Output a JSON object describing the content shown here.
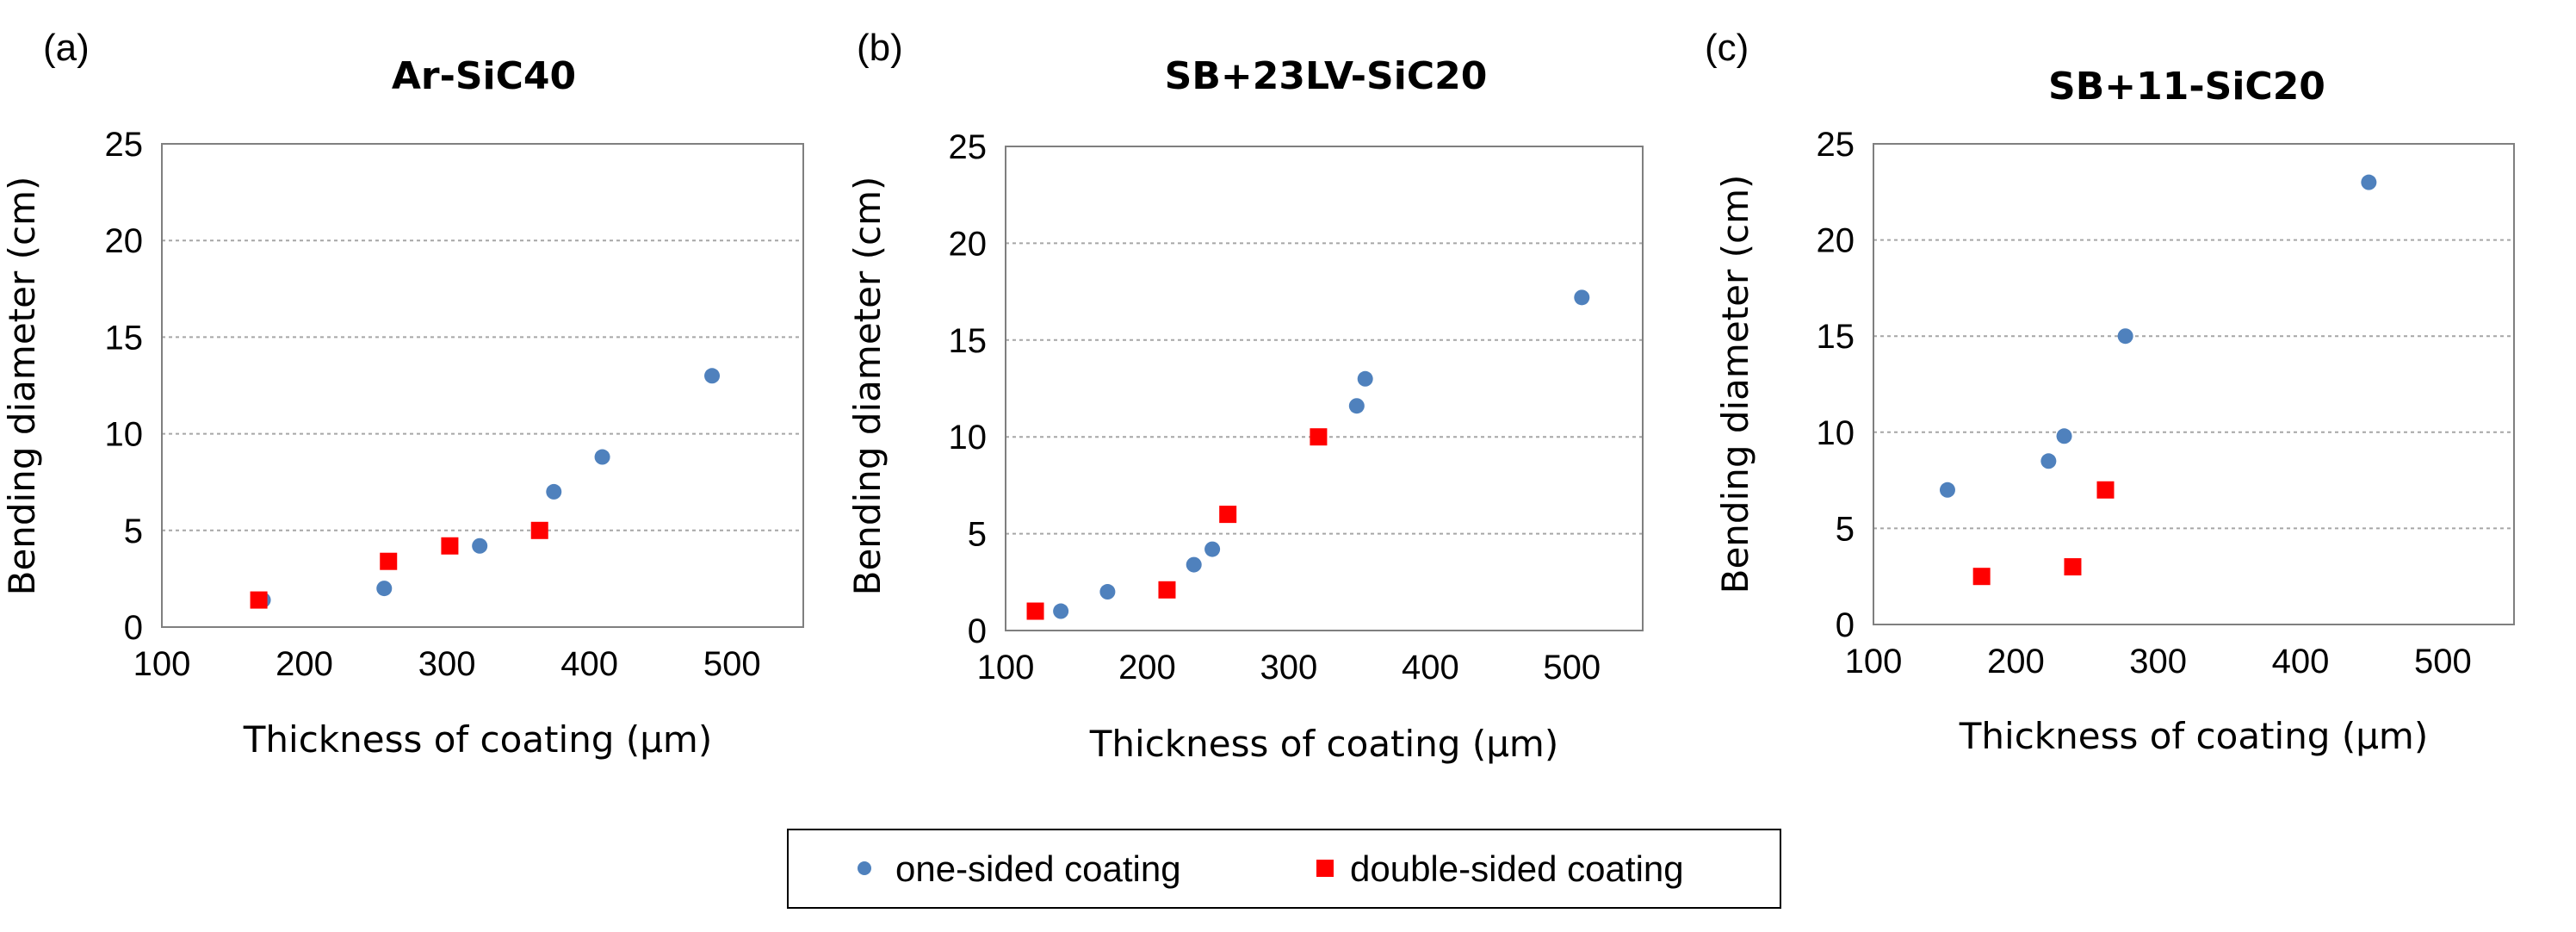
{
  "legend": {
    "series_a_label": "one-sided coating",
    "series_b_label": "double-sided coating"
  },
  "colors": {
    "one_sided": "#4F81BD",
    "double_sided": "#FF0000",
    "grid": "#A6A6A6",
    "frame": "#7F7F7F"
  },
  "chart_data": [
    {
      "type": "scatter",
      "panel_label": "(a)",
      "title": "Ar-SiC40",
      "xlabel": "Thickness of coating (μm)",
      "ylabel": "Bending diameter (cm)",
      "xlim": [
        100,
        550
      ],
      "ylim": [
        0,
        25
      ],
      "xticks": [
        100,
        200,
        300,
        400,
        500
      ],
      "yticks": [
        0,
        5,
        10,
        15,
        20,
        25
      ],
      "grid": "horizontal",
      "series": [
        {
          "name": "one-sided coating",
          "marker": "circle",
          "points": [
            [
              171,
              1.4
            ],
            [
              256,
              2.0
            ],
            [
              323,
              4.2
            ],
            [
              375,
              7.0
            ],
            [
              409,
              8.8
            ],
            [
              486,
              13.0
            ]
          ]
        },
        {
          "name": "double-sided coating",
          "marker": "square",
          "points": [
            [
              168,
              1.4
            ],
            [
              259,
              3.4
            ],
            [
              302,
              4.2
            ],
            [
              365,
              5.0
            ]
          ]
        }
      ]
    },
    {
      "type": "scatter",
      "panel_label": "(b)",
      "title": "SB+23LV-SiC20",
      "xlabel": "Thickness of coating (μm)",
      "ylabel": "Bending diameter (cm)",
      "xlim": [
        100,
        550
      ],
      "ylim": [
        0,
        25
      ],
      "xticks": [
        100,
        200,
        300,
        400,
        500
      ],
      "yticks": [
        0,
        5,
        10,
        15,
        20,
        25
      ],
      "grid": "horizontal",
      "series": [
        {
          "name": "one-sided coating",
          "marker": "circle",
          "points": [
            [
              139,
              1.0
            ],
            [
              172,
              2.0
            ],
            [
              233,
              3.4
            ],
            [
              246,
              4.2
            ],
            [
              348,
              11.6
            ],
            [
              354,
              13.0
            ],
            [
              507,
              17.2
            ]
          ]
        },
        {
          "name": "double-sided coating",
          "marker": "square",
          "points": [
            [
              121,
              1.0
            ],
            [
              214,
              2.1
            ],
            [
              257,
              6.0
            ],
            [
              321,
              10.0
            ]
          ]
        }
      ]
    },
    {
      "type": "scatter",
      "panel_label": "(c)",
      "title": "SB+11-SiC20",
      "xlabel": "Thickness of coating (μm)",
      "ylabel": "Bending diameter (cm)",
      "xlim": [
        100,
        550
      ],
      "ylim": [
        0,
        25
      ],
      "xticks": [
        100,
        200,
        300,
        400,
        500
      ],
      "yticks": [
        0,
        5,
        10,
        15,
        20,
        25
      ],
      "grid": "horizontal",
      "series": [
        {
          "name": "one-sided coating",
          "marker": "circle",
          "points": [
            [
              152,
              7.0
            ],
            [
              223,
              8.5
            ],
            [
              234,
              9.8
            ],
            [
              277,
              15.0
            ],
            [
              448,
              23.0
            ]
          ]
        },
        {
          "name": "double-sided coating",
          "marker": "square",
          "points": [
            [
              176,
              2.5
            ],
            [
              240,
              3.0
            ],
            [
              263,
              7.0
            ]
          ]
        }
      ]
    }
  ]
}
